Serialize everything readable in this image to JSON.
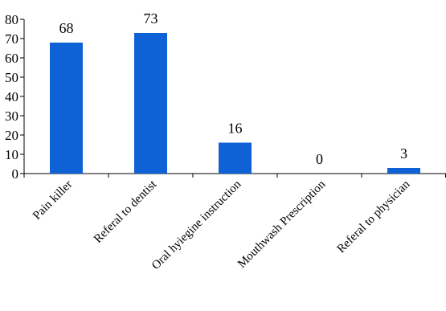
{
  "colors": {
    "bar": "#0f62d6",
    "axis": "#000000",
    "text": "#000000"
  },
  "chart_data": {
    "type": "bar",
    "title": "",
    "xlabel": "",
    "ylabel": "",
    "categories": [
      "Pain killer",
      "Referal to dentist",
      "Oral hyiegine instruction",
      "Mouthwash Prescription",
      "Referal to physician"
    ],
    "values": [
      68,
      73,
      16,
      0,
      3
    ],
    "ylim": [
      0,
      80
    ],
    "yticks": [
      0,
      10,
      20,
      30,
      40,
      50,
      60,
      70,
      80
    ],
    "grid": false,
    "legend": "none",
    "data_labels": true,
    "category_label_rotation": "diagonal"
  }
}
